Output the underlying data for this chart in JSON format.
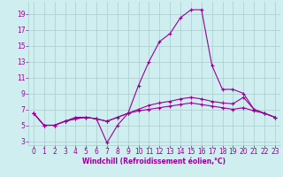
{
  "xlabel": "Windchill (Refroidissement éolien,°C)",
  "x_main": [
    0,
    1,
    2,
    3,
    4,
    5,
    6,
    7,
    8,
    9,
    10,
    11,
    12,
    13,
    14,
    15,
    16,
    17,
    18,
    19,
    20,
    21,
    22,
    23
  ],
  "y_line1": [
    6.5,
    5.0,
    5.0,
    5.5,
    6.0,
    6.0,
    5.8,
    2.8,
    5.0,
    6.5,
    10.0,
    13.0,
    15.5,
    16.5,
    18.5,
    19.5,
    19.5,
    12.5,
    9.5,
    9.5,
    9.0,
    7.0,
    6.5,
    6.0
  ],
  "y_line2": [
    6.5,
    5.0,
    5.0,
    5.5,
    5.8,
    6.0,
    5.8,
    5.5,
    6.0,
    6.5,
    7.0,
    7.5,
    7.8,
    8.0,
    8.3,
    8.5,
    8.3,
    8.0,
    7.8,
    7.7,
    8.5,
    7.0,
    6.5,
    6.0
  ],
  "y_line3": [
    6.5,
    5.0,
    5.0,
    5.5,
    5.8,
    6.0,
    5.8,
    5.5,
    6.0,
    6.5,
    6.8,
    7.0,
    7.2,
    7.4,
    7.6,
    7.8,
    7.6,
    7.4,
    7.2,
    7.0,
    7.2,
    6.8,
    6.5,
    6.0
  ],
  "line_color": "#990099",
  "bg_color": "#ceeef0",
  "grid_color": "#aacccc",
  "ylim": [
    2.5,
    20.5
  ],
  "xlim": [
    -0.5,
    23.5
  ],
  "yticks": [
    3,
    5,
    7,
    9,
    11,
    13,
    15,
    17,
    19
  ],
  "xticks": [
    0,
    1,
    2,
    3,
    4,
    5,
    6,
    7,
    8,
    9,
    10,
    11,
    12,
    13,
    14,
    15,
    16,
    17,
    18,
    19,
    20,
    21,
    22,
    23
  ],
  "tick_fontsize": 5.5,
  "xlabel_fontsize": 5.5
}
